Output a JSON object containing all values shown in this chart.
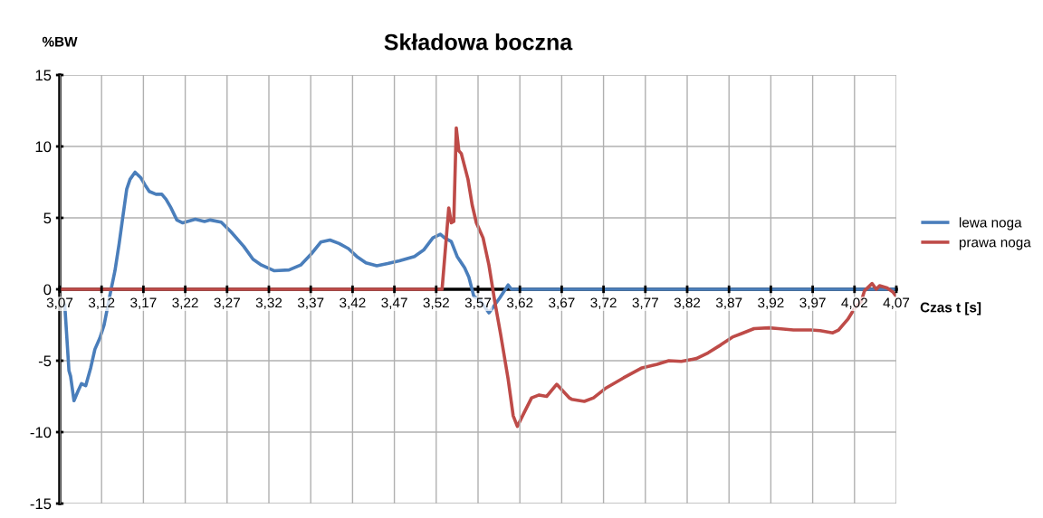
{
  "chart_data": {
    "type": "line",
    "title": "Składowa boczna",
    "xlabel": "Czas t [s]",
    "ylabel": "%BW",
    "series": [
      {
        "name": "lewa noga",
        "color": "#4a7ebb",
        "x": [
          3.076,
          3.081,
          3.083,
          3.087,
          3.092,
          3.096,
          3.101,
          3.107,
          3.112,
          3.118,
          3.123,
          3.13,
          3.136,
          3.141,
          3.145,
          3.15,
          3.154,
          3.16,
          3.167,
          3.172,
          3.177,
          3.185,
          3.192,
          3.197,
          3.203,
          3.21,
          3.217,
          3.232,
          3.243,
          3.25,
          3.263,
          3.275,
          3.29,
          3.301,
          3.311,
          3.326,
          3.344,
          3.358,
          3.371,
          3.382,
          3.393,
          3.404,
          3.415,
          3.425,
          3.436,
          3.449,
          3.462,
          3.476,
          3.494,
          3.505,
          3.516,
          3.525,
          3.53,
          3.538,
          3.545,
          3.554,
          3.559,
          3.565,
          3.572,
          3.583,
          3.596,
          3.606,
          3.61,
          4.07
        ],
        "values": [
          -1.1,
          -5.7,
          -6.1,
          -7.8,
          -7.1,
          -6.6,
          -6.75,
          -5.5,
          -4.2,
          -3.4,
          -2.5,
          -0.4,
          1.3,
          3.2,
          4.9,
          7.0,
          7.7,
          8.2,
          7.8,
          7.3,
          6.85,
          6.65,
          6.65,
          6.3,
          5.7,
          4.85,
          4.65,
          4.9,
          4.75,
          4.85,
          4.7,
          4.0,
          3.0,
          2.1,
          1.7,
          1.3,
          1.35,
          1.7,
          2.5,
          3.3,
          3.45,
          3.2,
          2.85,
          2.3,
          1.85,
          1.65,
          1.8,
          2.0,
          2.3,
          2.75,
          3.6,
          3.85,
          3.6,
          3.35,
          2.3,
          1.5,
          0.85,
          -0.5,
          -0.75,
          -1.65,
          -0.6,
          0.3,
          0,
          0
        ]
      },
      {
        "name": "prawa noga",
        "color": "#be4b48",
        "x": [
          3.07,
          3.527,
          3.535,
          3.538,
          3.541,
          3.544,
          3.547,
          3.55,
          3.558,
          3.563,
          3.568,
          3.576,
          3.583,
          3.59,
          3.597,
          3.606,
          3.612,
          3.617,
          3.625,
          3.634,
          3.643,
          3.652,
          3.664,
          3.679,
          3.682,
          3.697,
          3.708,
          3.722,
          3.744,
          3.766,
          3.784,
          3.798,
          3.813,
          3.831,
          3.845,
          3.86,
          3.874,
          3.885,
          3.9,
          3.918,
          3.929,
          3.947,
          3.968,
          3.979,
          3.994,
          4.001,
          4.012,
          4.021,
          4.028,
          4.032,
          4.041,
          4.046,
          4.05,
          4.059,
          4.066,
          4.07
        ],
        "values": [
          0,
          0,
          5.7,
          4.65,
          4.75,
          11.3,
          9.7,
          9.5,
          7.7,
          5.9,
          4.65,
          3.6,
          1.7,
          -0.85,
          -3.15,
          -6.3,
          -8.85,
          -9.6,
          -8.65,
          -7.6,
          -7.4,
          -7.5,
          -6.65,
          -7.6,
          -7.7,
          -7.85,
          -7.6,
          -6.95,
          -6.2,
          -5.5,
          -5.25,
          -5.0,
          -5.05,
          -4.85,
          -4.45,
          -3.9,
          -3.35,
          -3.1,
          -2.75,
          -2.7,
          -2.75,
          -2.85,
          -2.85,
          -2.9,
          -3.05,
          -2.85,
          -2.1,
          -1.25,
          -0.85,
          -0.1,
          0.4,
          0,
          0.25,
          0.1,
          -0.2,
          -0.5
        ]
      }
    ],
    "xlim": [
      3.07,
      4.07
    ],
    "xticks": [
      {
        "value": 3.07,
        "label": "3,07"
      },
      {
        "value": 3.12,
        "label": "3,12"
      },
      {
        "value": 3.17,
        "label": "3,17"
      },
      {
        "value": 3.22,
        "label": "3,22"
      },
      {
        "value": 3.27,
        "label": "3,27"
      },
      {
        "value": 3.32,
        "label": "3,32"
      },
      {
        "value": 3.37,
        "label": "3,37"
      },
      {
        "value": 3.42,
        "label": "3,42"
      },
      {
        "value": 3.47,
        "label": "3,47"
      },
      {
        "value": 3.52,
        "label": "3,52"
      },
      {
        "value": 3.57,
        "label": "3,57"
      },
      {
        "value": 3.62,
        "label": "3,62"
      },
      {
        "value": 3.67,
        "label": "3,67"
      },
      {
        "value": 3.72,
        "label": "3,72"
      },
      {
        "value": 3.77,
        "label": "3,77"
      },
      {
        "value": 3.82,
        "label": "3,82"
      },
      {
        "value": 3.87,
        "label": "3,87"
      },
      {
        "value": 3.92,
        "label": "3,92"
      },
      {
        "value": 3.97,
        "label": "3,97"
      },
      {
        "value": 4.02,
        "label": "4,02"
      },
      {
        "value": 4.07,
        "label": "4,07"
      }
    ],
    "ylim": [
      -15,
      15
    ],
    "yticks": [
      -15,
      -10,
      -5,
      0,
      5,
      10,
      15
    ],
    "grid": true,
    "legend": "right",
    "line_style": "solid",
    "marker": "none"
  }
}
